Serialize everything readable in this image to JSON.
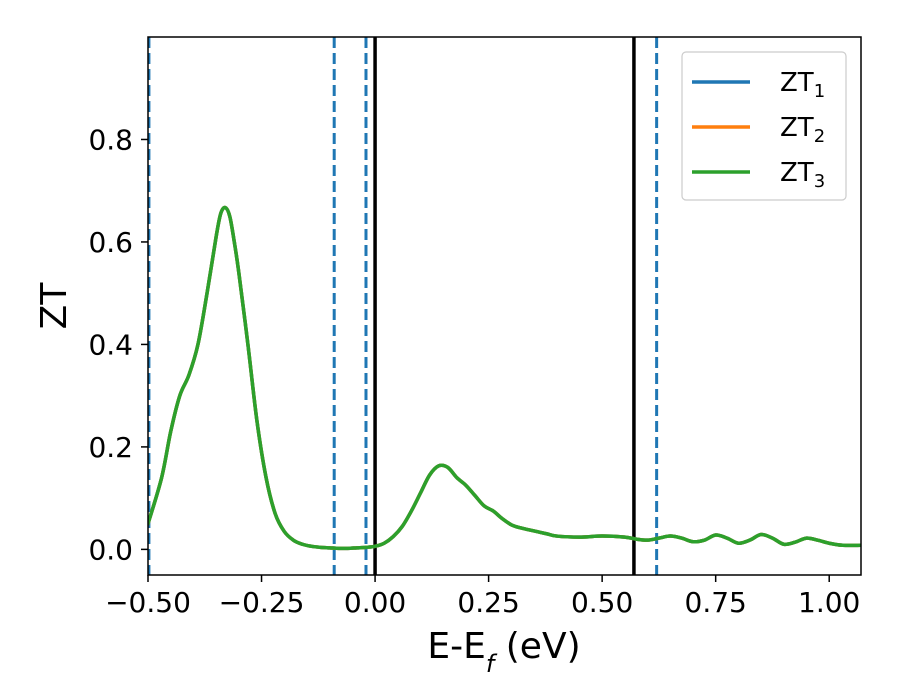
{
  "chart_data": {
    "type": "line",
    "title": "",
    "xlabel_main": "E-E",
    "xlabel_sub": "f",
    "xlabel_unit": " (eV)",
    "ylabel": "ZT",
    "xlim": [
      -0.5,
      1.07
    ],
    "ylim": [
      -0.05,
      1.0
    ],
    "xticks": [
      -0.5,
      -0.25,
      0.0,
      0.25,
      0.5,
      0.75,
      1.0
    ],
    "xtick_labels": [
      "−0.50",
      "−0.25",
      "0.00",
      "0.25",
      "0.50",
      "0.75",
      "1.00"
    ],
    "yticks": [
      0.0,
      0.2,
      0.4,
      0.6,
      0.8
    ],
    "ytick_labels": [
      "0.0",
      "0.2",
      "0.4",
      "0.6",
      "0.8"
    ],
    "legend_position": "top-right",
    "series": [
      {
        "name_main": "ZT",
        "name_sub": "1",
        "color": "#1f77b4"
      },
      {
        "name_main": "ZT",
        "name_sub": "2",
        "color": "#ff7f0e"
      },
      {
        "name_main": "ZT",
        "name_sub": "3",
        "color": "#2ca02c"
      }
    ],
    "x": [
      -0.5,
      -0.47,
      -0.45,
      -0.43,
      -0.41,
      -0.39,
      -0.37,
      -0.35,
      -0.34,
      -0.33,
      -0.32,
      -0.31,
      -0.3,
      -0.28,
      -0.26,
      -0.24,
      -0.22,
      -0.2,
      -0.18,
      -0.16,
      -0.14,
      -0.12,
      -0.1,
      -0.08,
      -0.06,
      -0.04,
      -0.02,
      0.0,
      0.02,
      0.04,
      0.06,
      0.08,
      0.1,
      0.12,
      0.14,
      0.16,
      0.18,
      0.2,
      0.22,
      0.24,
      0.26,
      0.28,
      0.3,
      0.32,
      0.34,
      0.36,
      0.38,
      0.4,
      0.45,
      0.5,
      0.55,
      0.575,
      0.6,
      0.625,
      0.65,
      0.675,
      0.7,
      0.725,
      0.75,
      0.775,
      0.8,
      0.825,
      0.85,
      0.875,
      0.9,
      0.925,
      0.95,
      0.975,
      1.0,
      1.03,
      1.07
    ],
    "y": [
      0.05,
      0.14,
      0.23,
      0.3,
      0.34,
      0.4,
      0.5,
      0.61,
      0.655,
      0.667,
      0.65,
      0.6,
      0.54,
      0.4,
      0.25,
      0.14,
      0.07,
      0.035,
      0.018,
      0.01,
      0.006,
      0.004,
      0.003,
      0.002,
      0.002,
      0.003,
      0.004,
      0.006,
      0.012,
      0.025,
      0.045,
      0.075,
      0.11,
      0.145,
      0.163,
      0.16,
      0.14,
      0.125,
      0.105,
      0.085,
      0.075,
      0.06,
      0.048,
      0.042,
      0.038,
      0.034,
      0.03,
      0.026,
      0.024,
      0.026,
      0.024,
      0.02,
      0.018,
      0.022,
      0.026,
      0.022,
      0.015,
      0.018,
      0.028,
      0.022,
      0.012,
      0.018,
      0.029,
      0.022,
      0.01,
      0.014,
      0.022,
      0.018,
      0.012,
      0.008,
      0.008
    ],
    "vlines": [
      {
        "x": -0.498,
        "color": "#1f77b4",
        "style": "dashed"
      },
      {
        "x": -0.09,
        "color": "#1f77b4",
        "style": "dashed"
      },
      {
        "x": -0.02,
        "color": "#1f77b4",
        "style": "dashed"
      },
      {
        "x": 0.0,
        "color": "#000000",
        "style": "solid"
      },
      {
        "x": 0.57,
        "color": "#000000",
        "style": "solid"
      },
      {
        "x": 0.62,
        "color": "#1f77b4",
        "style": "dashed"
      }
    ]
  }
}
